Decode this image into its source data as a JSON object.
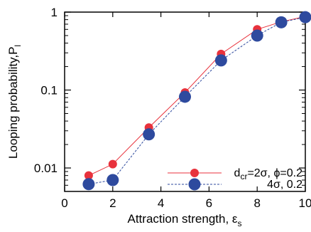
{
  "chart_data": {
    "type": "line",
    "xlabel": "Attraction strength, ε",
    "xlabel_sub": "s",
    "ylabel": "Looping probability,P",
    "ylabel_sub": "l",
    "xlim": [
      0,
      10
    ],
    "ylim": [
      0.005,
      1
    ],
    "yscale": "log",
    "grid": false,
    "legend_position": "bottom-right",
    "x_ticks": [
      0,
      2,
      4,
      6,
      8,
      10
    ],
    "y_ticks": [
      {
        "value": 0.01,
        "label": "0.01"
      },
      {
        "value": 0.1,
        "label": "0.1"
      },
      {
        "value": 1,
        "label": "1"
      }
    ],
    "series": [
      {
        "legend_label": {
          "d": "d",
          "d_sub": "cr",
          "rest": "=2σ, ϕ=0.2"
        },
        "color": "#e8323c",
        "line_style": "solid",
        "marker_size": "small",
        "x": [
          1,
          2,
          3.5,
          5,
          6.5,
          8,
          9,
          10
        ],
        "y": [
          0.008,
          0.0112,
          0.033,
          0.093,
          0.29,
          0.6,
          0.75,
          0.88
        ]
      },
      {
        "legend_label": {
          "text": "4σ, 0.2"
        },
        "color": "#2e4a9e",
        "line_style": "dashed",
        "marker_size": "large",
        "x": [
          1,
          2,
          3.5,
          5,
          6.5,
          8,
          9,
          10
        ],
        "y": [
          0.0062,
          0.007,
          0.027,
          0.082,
          0.24,
          0.5,
          0.74,
          0.86
        ]
      }
    ]
  }
}
